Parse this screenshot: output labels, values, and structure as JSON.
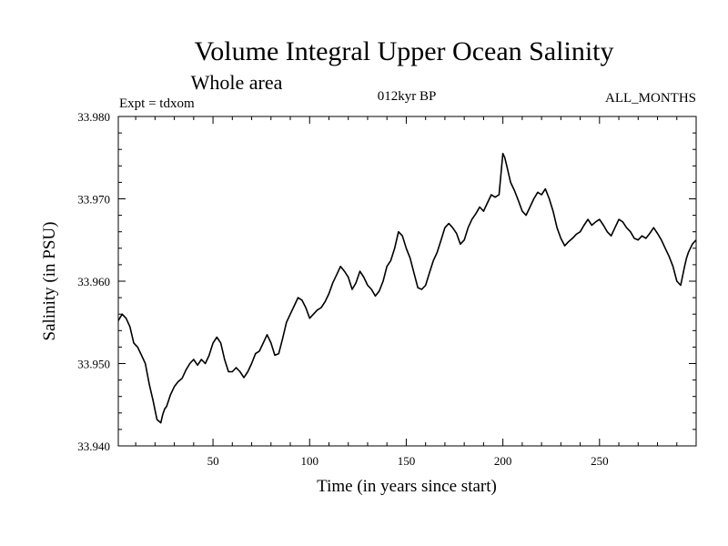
{
  "chart_data": {
    "type": "line",
    "title": "Volume Integral Upper Ocean Salinity",
    "subtitle": "Whole area",
    "header_left": "Expt = tdxom",
    "header_center": "012kyr BP",
    "header_right": "ALL_MONTHS",
    "xlabel": "Time (in years since start)",
    "ylabel": "Salinity (in PSU)",
    "xlim": [
      1,
      300
    ],
    "ylim": [
      33.94,
      33.98
    ],
    "xticks": [
      50,
      100,
      150,
      200,
      250
    ],
    "xtick_labels": [
      "50",
      "100",
      "150",
      "200",
      "250"
    ],
    "yticks": [
      33.94,
      33.95,
      33.96,
      33.97,
      33.98
    ],
    "ytick_labels": [
      "33.940",
      "33.950",
      "33.960",
      "33.970",
      "33.980"
    ],
    "grid": false,
    "series": [
      {
        "x": [
          1,
          3,
          5,
          7,
          9,
          11,
          13,
          15,
          17,
          19,
          21,
          23,
          24,
          25,
          26,
          28,
          30,
          32,
          34,
          36,
          38,
          40,
          42,
          44,
          46,
          48,
          50,
          52,
          54,
          56,
          58,
          60,
          62,
          64,
          66,
          68,
          70,
          72,
          74,
          76,
          78,
          80,
          82,
          84,
          86,
          88,
          90,
          92,
          94,
          96,
          98,
          100,
          102,
          104,
          106,
          108,
          110,
          112,
          114,
          116,
          118,
          120,
          122,
          124,
          126,
          128,
          130,
          132,
          134,
          136,
          138,
          140,
          142,
          144,
          146,
          148,
          150,
          152,
          154,
          156,
          158,
          160,
          162,
          164,
          166,
          168,
          170,
          172,
          174,
          176,
          178,
          180,
          182,
          184,
          186,
          188,
          190,
          192,
          194,
          196,
          198,
          199,
          200,
          201,
          202,
          204,
          206,
          208,
          210,
          212,
          214,
          216,
          218,
          220,
          222,
          224,
          226,
          228,
          230,
          232,
          234,
          236,
          238,
          240,
          242,
          244,
          246,
          248,
          250,
          252,
          254,
          256,
          258,
          260,
          262,
          264,
          266,
          268,
          270,
          272,
          274,
          276,
          278,
          280,
          282,
          284,
          286,
          288,
          290,
          292,
          294,
          295,
          296,
          298,
          300
        ],
        "values": [
          33.9552,
          33.956,
          33.9555,
          33.9545,
          33.9525,
          33.952,
          33.951,
          33.95,
          33.9475,
          33.9455,
          33.9432,
          33.9428,
          33.9438,
          33.9445,
          33.9448,
          33.9462,
          33.9472,
          33.9478,
          33.9482,
          33.9492,
          33.95,
          33.9505,
          33.9498,
          33.9505,
          33.95,
          33.951,
          33.9525,
          33.9532,
          33.9525,
          33.9505,
          33.949,
          33.949,
          33.9495,
          33.949,
          33.9483,
          33.949,
          33.95,
          33.9512,
          33.9515,
          33.9525,
          33.9535,
          33.9525,
          33.951,
          33.9512,
          33.953,
          33.955,
          33.956,
          33.957,
          33.958,
          33.9577,
          33.9568,
          33.9555,
          33.956,
          33.9565,
          33.9568,
          33.9575,
          33.9585,
          33.9598,
          33.9608,
          33.9618,
          33.9612,
          33.9605,
          33.959,
          33.9598,
          33.9612,
          33.9605,
          33.9595,
          33.959,
          33.9582,
          33.9588,
          33.96,
          33.9618,
          33.9625,
          33.964,
          33.966,
          33.9655,
          33.964,
          33.9628,
          33.961,
          33.9592,
          33.959,
          33.9595,
          33.961,
          33.9625,
          33.9635,
          33.965,
          33.9665,
          33.967,
          33.9665,
          33.9658,
          33.9645,
          33.965,
          33.9665,
          33.9675,
          33.9682,
          33.969,
          33.9685,
          33.9695,
          33.9705,
          33.9702,
          33.9705,
          33.973,
          33.9755,
          33.975,
          33.974,
          33.972,
          33.971,
          33.9698,
          33.9685,
          33.968,
          33.969,
          33.97,
          33.9708,
          33.9705,
          33.9712,
          33.97,
          33.9685,
          33.9665,
          33.9652,
          33.9643,
          33.9648,
          33.9652,
          33.9657,
          33.966,
          33.9668,
          33.9675,
          33.9668,
          33.9672,
          33.9675,
          33.9668,
          33.966,
          33.9655,
          33.9665,
          33.9675,
          33.9672,
          33.9665,
          33.966,
          33.9652,
          33.965,
          33.9655,
          33.9652,
          33.9658,
          33.9665,
          33.9658,
          33.965,
          33.964,
          33.963,
          33.9618,
          33.96,
          33.9595,
          33.9618,
          33.9628,
          33.9635,
          33.9645,
          33.965
        ]
      }
    ]
  }
}
